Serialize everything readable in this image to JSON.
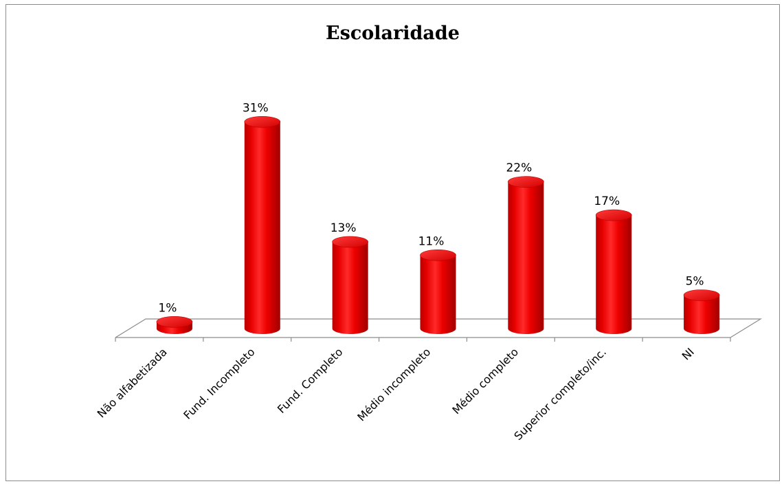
{
  "chart_data": {
    "type": "bar",
    "title": "Escolaridade",
    "categories": [
      "Não alfabetizada",
      "Fund. Incompleto",
      "Fund. Completo",
      "Médio incompleto",
      "Médio completo",
      "Superior completo/inc.",
      "NI"
    ],
    "values": [
      1,
      31,
      13,
      11,
      22,
      17,
      5
    ],
    "data_labels": [
      "1%",
      "31%",
      "13%",
      "11%",
      "22%",
      "17%",
      "5%"
    ],
    "unit": "%",
    "three_d": true,
    "grid": false,
    "legend": "none",
    "bar_color": "#e00000"
  }
}
